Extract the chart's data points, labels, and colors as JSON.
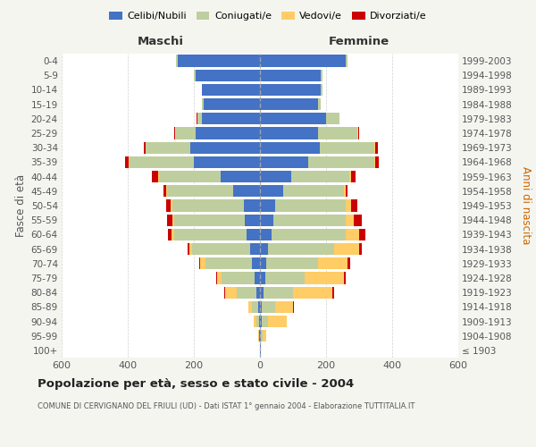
{
  "age_groups": [
    "100+",
    "95-99",
    "90-94",
    "85-89",
    "80-84",
    "75-79",
    "70-74",
    "65-69",
    "60-64",
    "55-59",
    "50-54",
    "45-49",
    "40-44",
    "35-39",
    "30-34",
    "25-29",
    "20-24",
    "15-19",
    "10-14",
    "5-9",
    "0-4"
  ],
  "birth_years": [
    "≤ 1903",
    "1904-1908",
    "1909-1913",
    "1914-1918",
    "1919-1923",
    "1924-1928",
    "1929-1933",
    "1934-1938",
    "1939-1943",
    "1944-1948",
    "1949-1953",
    "1954-1958",
    "1959-1963",
    "1964-1968",
    "1969-1973",
    "1974-1978",
    "1979-1983",
    "1984-1988",
    "1989-1993",
    "1994-1998",
    "1999-2003"
  ],
  "colors": {
    "celibinubili": "#4472C4",
    "coniugati": "#BFCE9E",
    "vedovi": "#FFCC66",
    "divorziati": "#CC0000"
  },
  "males": {
    "celibinubili": [
      1,
      2,
      3,
      5,
      10,
      15,
      25,
      30,
      40,
      45,
      50,
      80,
      120,
      200,
      210,
      195,
      175,
      170,
      175,
      195,
      250
    ],
    "coniugati": [
      0,
      2,
      8,
      18,
      60,
      100,
      140,
      175,
      220,
      215,
      215,
      200,
      185,
      195,
      135,
      60,
      15,
      5,
      2,
      5,
      5
    ],
    "vedovi": [
      0,
      2,
      8,
      12,
      35,
      15,
      15,
      8,
      8,
      5,
      5,
      3,
      3,
      2,
      2,
      2,
      0,
      0,
      0,
      0,
      0
    ],
    "divorziati": [
      0,
      0,
      0,
      0,
      3,
      3,
      5,
      5,
      10,
      15,
      15,
      10,
      20,
      10,
      5,
      3,
      1,
      0,
      0,
      0,
      0
    ]
  },
  "females": {
    "celibinubili": [
      2,
      3,
      5,
      5,
      10,
      15,
      20,
      25,
      35,
      40,
      45,
      70,
      95,
      145,
      180,
      175,
      200,
      175,
      185,
      185,
      260
    ],
    "coniugati": [
      0,
      5,
      20,
      40,
      90,
      120,
      155,
      200,
      225,
      220,
      215,
      185,
      175,
      200,
      165,
      120,
      40,
      10,
      5,
      5,
      5
    ],
    "vedovi": [
      2,
      10,
      55,
      55,
      120,
      120,
      90,
      75,
      40,
      25,
      15,
      5,
      5,
      3,
      3,
      2,
      0,
      0,
      0,
      0,
      0
    ],
    "divorziati": [
      0,
      0,
      2,
      2,
      3,
      5,
      8,
      8,
      18,
      22,
      20,
      5,
      15,
      12,
      8,
      2,
      1,
      0,
      0,
      0,
      0
    ]
  },
  "title": "Popolazione per età, sesso e stato civile - 2004",
  "subtitle": "COMUNE DI CERVIGNANO DEL FRIULI (UD) - Dati ISTAT 1° gennaio 2004 - Elaborazione TUTTITALIA.IT",
  "xlabel_left": "Maschi",
  "xlabel_right": "Femmine",
  "ylabel_left": "Fasce di età",
  "ylabel_right": "Anni di nascita",
  "xlim": 600,
  "bg_color": "#F5F5F0",
  "plot_bg_color": "#FFFFFF",
  "grid_color": "#CCCCCC"
}
